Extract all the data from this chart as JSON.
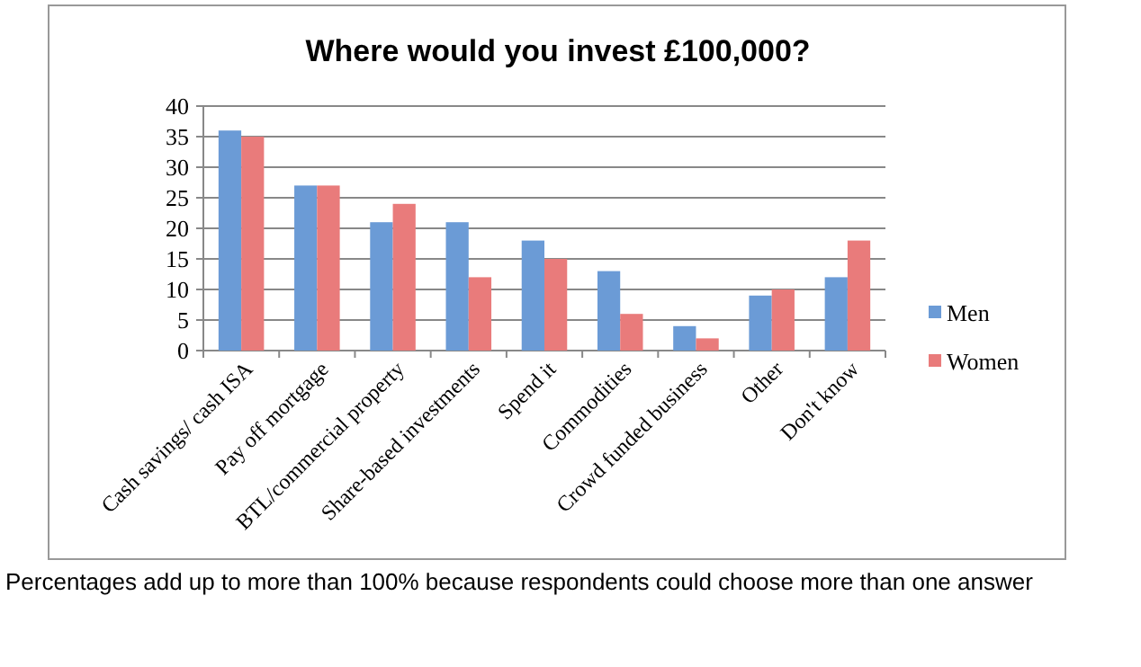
{
  "chart_data": {
    "type": "bar",
    "title": "Where would you invest £100,000?",
    "categories": [
      "Cash savings/ cash ISA",
      "Pay off mortgage",
      "BTL/commercial property",
      "Share-based investments",
      "Spend it",
      "Commodities",
      "Crowd funded business",
      "Other",
      "Don't know"
    ],
    "series": [
      {
        "name": "Men",
        "color": "#6b9bd6",
        "values": [
          36,
          27,
          21,
          21,
          18,
          13,
          4,
          9,
          12
        ]
      },
      {
        "name": "Women",
        "color": "#e97b7b",
        "values": [
          35,
          27,
          24,
          12,
          15,
          6,
          2,
          10,
          18
        ]
      }
    ],
    "ylim": [
      0,
      40
    ],
    "yticks": [
      0,
      5,
      10,
      15,
      20,
      25,
      30,
      35,
      40
    ],
    "grid": "y",
    "legend": "right",
    "annotations": [
      "Percentages add up to more than 100% because respondents could choose more than one answer"
    ]
  }
}
